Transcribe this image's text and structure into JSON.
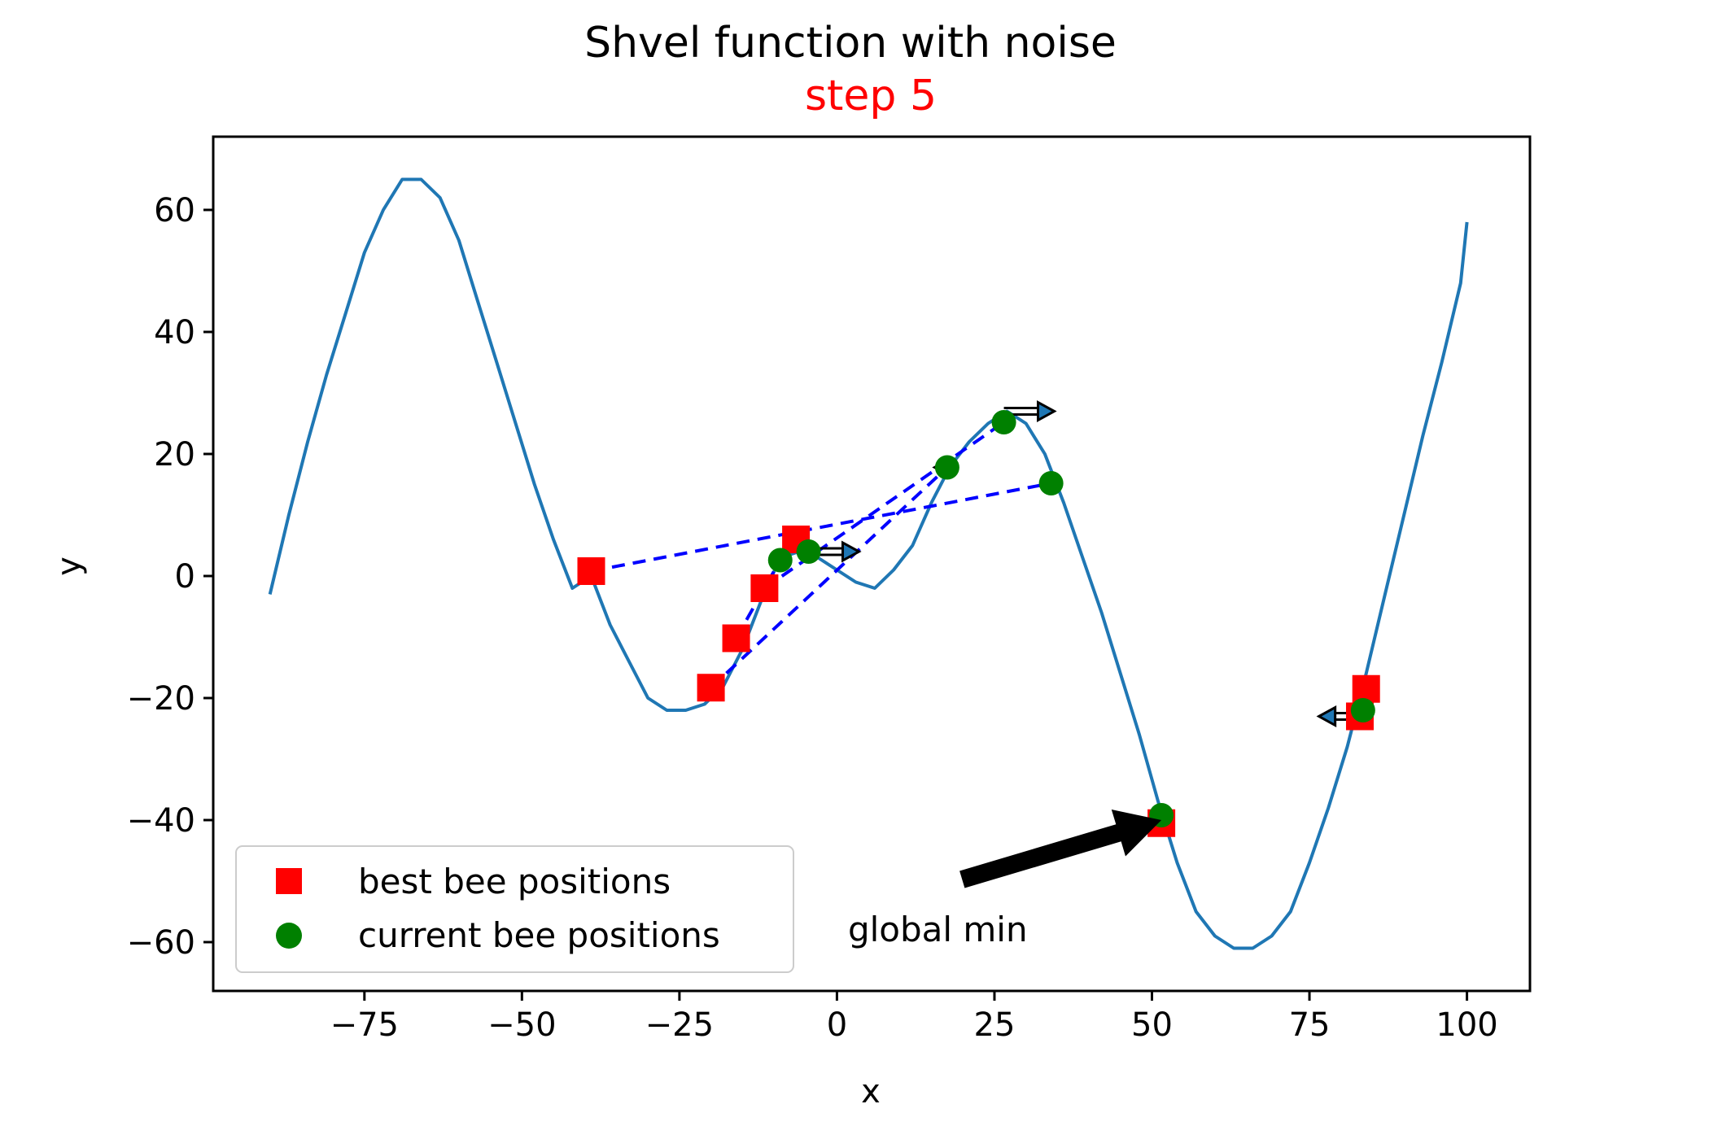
{
  "chart_data": {
    "type": "line",
    "title": "Shvel function with noise",
    "subtitle": "step 5",
    "xlabel": "x",
    "ylabel": "y",
    "xlim": [
      -99,
      110
    ],
    "ylim": [
      -68,
      72
    ],
    "x_ticks": [
      -75,
      -50,
      -25,
      0,
      25,
      50,
      75,
      100
    ],
    "x_tick_labels": [
      "−75",
      "−50",
      "−25",
      "0",
      "25",
      "50",
      "75",
      "100"
    ],
    "y_ticks": [
      -60,
      -40,
      -20,
      0,
      20,
      40,
      60
    ],
    "y_tick_labels": [
      "−60",
      "−40",
      "−20",
      "0",
      "20",
      "40",
      "60"
    ],
    "grid": false,
    "legend_placement": "lower left",
    "colors": {
      "curve": "#1f77b4",
      "best": "#ff0000",
      "current": "#008000",
      "links": "#0000ff",
      "subtitle": "#ff0000"
    },
    "series": [
      {
        "type": "line",
        "x": [
          -90,
          -87,
          -84,
          -81,
          -78,
          -75,
          -72,
          -69,
          -66,
          -63,
          -60,
          -57,
          -54,
          -51,
          -48,
          -45,
          -42,
          -39,
          -36,
          -33,
          -30,
          -27,
          -24,
          -21,
          -18,
          -15,
          -12,
          -9,
          -6,
          -3,
          0,
          3,
          6,
          9,
          12,
          15,
          18,
          21,
          24,
          27,
          30,
          33,
          36,
          39,
          42,
          45,
          48,
          51,
          54,
          57,
          60,
          63,
          66,
          69,
          72,
          75,
          78,
          81,
          84,
          87,
          90,
          93,
          96,
          99,
          100
        ],
        "y": [
          -3,
          10,
          22,
          33,
          43,
          53,
          60,
          65,
          65,
          62,
          55,
          45,
          35,
          25,
          15,
          6,
          -2,
          0,
          -8,
          -14,
          -20,
          -22,
          -22,
          -21,
          -18,
          -12,
          -4,
          3,
          4,
          3,
          1,
          -1,
          -2,
          1,
          5,
          12,
          18,
          22,
          25,
          27,
          25,
          20,
          12,
          3,
          -6,
          -16,
          -26,
          -37,
          -47,
          -55,
          -59,
          -61,
          -61,
          -59,
          -55,
          -47,
          -38,
          -28,
          -16,
          -3,
          10,
          23,
          35,
          48,
          58
        ]
      },
      {
        "name": "best bee positions",
        "type": "scatter",
        "x": [
          -39,
          -20,
          -16,
          -11.5,
          -6.5,
          51.5,
          83,
          84
        ],
        "y": [
          0.8,
          -18.3,
          -10.2,
          -2,
          6,
          -40.5,
          -23,
          -18.5
        ]
      },
      {
        "name": "current bee positions",
        "type": "scatter",
        "x": [
          -9,
          -4.5,
          17.5,
          26.5,
          34,
          51.5,
          83.5
        ],
        "y": [
          2.6,
          4,
          17.8,
          25.2,
          15.2,
          -39.2,
          -22
        ]
      }
    ],
    "links": [
      {
        "from": [
          -39,
          0.8
        ],
        "to": [
          34,
          15.2
        ]
      },
      {
        "from": [
          -20,
          -18.3
        ],
        "to": [
          17.5,
          17.8
        ]
      },
      {
        "from": [
          -16,
          -10.2
        ],
        "to": [
          -9,
          2.6
        ]
      },
      {
        "from": [
          -11.5,
          -2
        ],
        "to": [
          26.5,
          25.2
        ]
      },
      {
        "from": [
          -6.5,
          6
        ],
        "to": [
          -4.5,
          4
        ]
      }
    ],
    "arrows": [
      {
        "x": -4.5,
        "y": 4,
        "dx": 8
      },
      {
        "x": 17.5,
        "y": 17.8,
        "dx": -2
      },
      {
        "x": 26.5,
        "y": 27,
        "dx": 8
      },
      {
        "x": 83.5,
        "y": -23,
        "dx": -7
      }
    ],
    "annotation": {
      "text": "global min",
      "point": [
        51.5,
        -40
      ],
      "text_at": [
        16,
        -58
      ]
    },
    "legend": [
      {
        "label": "best bee positions",
        "marker": "square"
      },
      {
        "label": "current bee positions",
        "marker": "circle"
      }
    ]
  }
}
